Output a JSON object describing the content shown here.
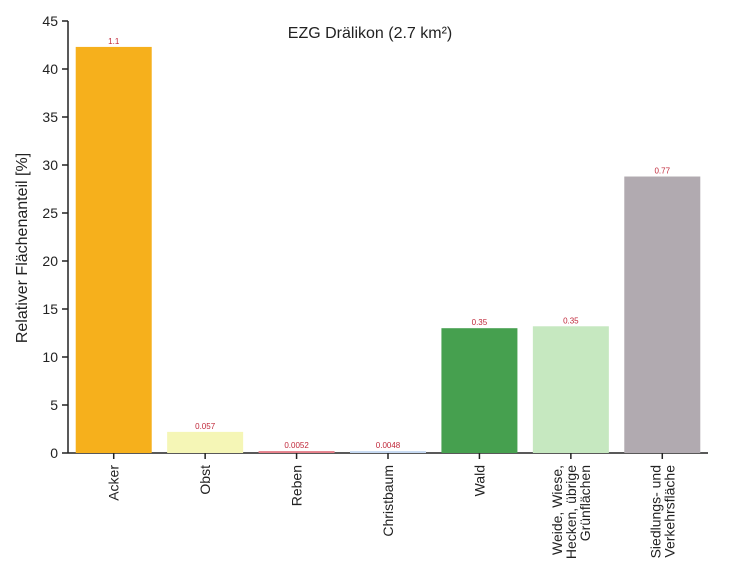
{
  "chart_data": {
    "type": "bar",
    "title": "EZG Drälikon (2.7 km²)",
    "ylabel": "Relativer Flächenanteil [%]",
    "xlabel": "",
    "ylim": [
      0,
      45
    ],
    "yticks": [
      0,
      5,
      10,
      15,
      20,
      25,
      30,
      35,
      40,
      45
    ],
    "grid": false,
    "categories": [
      [
        "Acker"
      ],
      [
        "Obst"
      ],
      [
        "Reben"
      ],
      [
        "Christbaum"
      ],
      [
        "Wald"
      ],
      [
        "Weide, Wiese,",
        "Hecken, übrige",
        "Grünflächen"
      ],
      [
        "Siedlungs- und",
        "Verkehrsfläche"
      ]
    ],
    "values": [
      42.3,
      2.2,
      0.2,
      0.2,
      13.0,
      13.2,
      28.8
    ],
    "data_labels": [
      "1.1",
      "0.057",
      "0.0052",
      "0.0048",
      "0.35",
      "0.35",
      "0.77"
    ],
    "colors": [
      "#f6b01c",
      "#f5f6b6",
      "#e57f8a",
      "#c6d9f2",
      "#46a04f",
      "#c6e8c0",
      "#b1aab0"
    ]
  }
}
